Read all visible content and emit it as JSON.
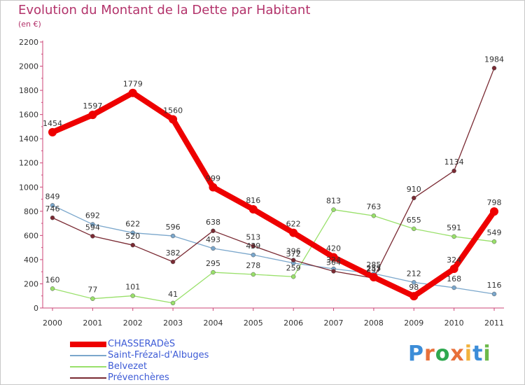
{
  "title": "Evolution du Montant de la Dette par Habitant",
  "subtitle": "(en €)",
  "logo": {
    "text": "Proxiti",
    "colors": [
      "#3c8dd8",
      "#e8703a",
      "#2ea84f",
      "#e8703a",
      "#f2b33d",
      "#3c8dd8",
      "#6dba4b"
    ]
  },
  "chart_data": {
    "type": "line",
    "title": "Evolution du Montant de la Dette par Habitant",
    "ylabel": "(en €)",
    "x": [
      "2000",
      "2001",
      "2002",
      "2003",
      "2004",
      "2005",
      "2006",
      "2007",
      "2008",
      "2009",
      "2010",
      "2011"
    ],
    "ylim": [
      0,
      2200
    ],
    "yticks": [
      0,
      200,
      400,
      600,
      800,
      1000,
      1200,
      1400,
      1600,
      1800,
      2000,
      2200
    ],
    "grid": false,
    "legend_position": "bottom-left",
    "series": [
      {
        "name": "CHASSERADèS",
        "color": "#ee0000",
        "values": [
          1454,
          1597,
          1779,
          1560,
          999,
          816,
          622,
          420,
          255,
          98,
          324,
          798
        ]
      },
      {
        "name": "Saint-Frézal-d'Albuges",
        "color": "#7ba7cc",
        "values": [
          849,
          692,
          622,
          596,
          493,
          439,
          372,
          324,
          285,
          212,
          168,
          116
        ]
      },
      {
        "name": "Belvezet",
        "color": "#99e06a",
        "values": [
          160,
          77,
          101,
          41,
          295,
          278,
          259,
          813,
          763,
          655,
          591,
          549
        ]
      },
      {
        "name": "Prévenchères",
        "color": "#7a2a33",
        "values": [
          746,
          594,
          520,
          382,
          638,
          513,
          396,
          304,
          247,
          910,
          1134,
          1984
        ]
      }
    ]
  }
}
